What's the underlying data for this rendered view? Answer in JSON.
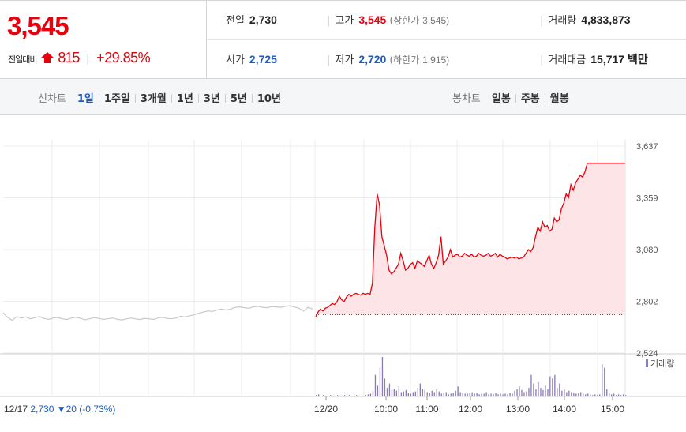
{
  "quote": {
    "price": "3,545",
    "change_label": "전일대비",
    "change_amount": "815",
    "change_pct": "+29.85%",
    "prev_close_label": "전일",
    "prev_close": "2,730",
    "open_label": "시가",
    "open": "2,725",
    "high_label": "고가",
    "high": "3,545",
    "upper_limit_label": "(상한가",
    "upper_limit": "3,545)",
    "low_label": "저가",
    "low": "2,720",
    "lower_limit_label": "(하한가",
    "lower_limit": "1,915)",
    "volume_label": "거래량",
    "volume": "4,833,873",
    "value_label": "거래대금",
    "value": "15,717 백만"
  },
  "tabs": {
    "line_label": "선차트",
    "line": [
      "1일",
      "1주일",
      "3개월",
      "1년",
      "3년",
      "5년",
      "10년"
    ],
    "line_active": "1일",
    "candle_label": "봉차트",
    "candle": [
      "일봉",
      "주봉",
      "월봉"
    ]
  },
  "colors": {
    "up": "#e8000c",
    "down": "#1a5bc8",
    "prev_line": "#c8c8c8",
    "volume": "#8a7ab5",
    "fill": "#fde4e6"
  },
  "chart_data": {
    "type": "line",
    "y_ticks": [
      "3,637",
      "3,359",
      "3,080",
      "2,802",
      "2,524"
    ],
    "y_tick_values": [
      3637,
      3359,
      3080,
      2802,
      2524
    ],
    "ylim": [
      2524,
      3637
    ],
    "x_ticks": [
      "12/20",
      "10:00",
      "11:00",
      "12:00",
      "13:00",
      "14:00",
      "15:00"
    ],
    "prev_day_caption": "12/17",
    "prev_day_close": "2,730",
    "prev_day_change": "▼20",
    "prev_day_change_pct": "(-0.73%)",
    "volume_legend": "거래량",
    "baseline": 2730,
    "series": [
      {
        "values": [
          2740,
          2715,
          2700,
          2720,
          2712,
          2718,
          2708,
          2715,
          2720,
          2710,
          2705,
          2712,
          2715,
          2708,
          2704,
          2712,
          2716,
          2710,
          2703,
          2708,
          2714,
          2710,
          2705,
          2708,
          2712,
          2706,
          2702,
          2707,
          2712,
          2708,
          2704,
          2710,
          2708,
          2705,
          2712,
          2716,
          2710,
          2708,
          2712,
          2722,
          2718,
          2724,
          2730,
          2738,
          2745,
          2750,
          2748,
          2756,
          2760,
          2755,
          2760,
          2770,
          2772,
          2768,
          2765,
          2772,
          2775,
          2770,
          2768,
          2774,
          2772,
          2770,
          2775,
          2778,
          2772,
          2765,
          2750,
          2770,
          2760
        ]
      },
      {
        "values": [
          2720,
          2745,
          2760,
          2750,
          2765,
          2770,
          2780,
          2790,
          2785,
          2800,
          2830,
          2810,
          2800,
          2825,
          2840,
          2830,
          2840,
          2845,
          2840,
          2835,
          2845,
          2840,
          2845,
          2840,
          2900,
          3200,
          3380,
          3320,
          3150,
          3100,
          3050,
          2970,
          2950,
          2960,
          2980,
          3000,
          3060,
          3020,
          2970,
          2980,
          3000,
          3010,
          2980,
          3020,
          3010,
          3000,
          2990,
          3020,
          3050,
          3000,
          2980,
          3010,
          3050,
          3150,
          3000,
          3020,
          3040,
          3080,
          3040,
          3050,
          3055,
          3040,
          3045,
          3060,
          3050,
          3045,
          3055,
          3040,
          3045,
          3060,
          3050,
          3045,
          3050,
          3060,
          3045,
          3050,
          3060,
          3040,
          3055,
          3045,
          3040,
          3030,
          3035,
          3040,
          3035,
          3040,
          3030,
          3035,
          3040,
          3060,
          3080,
          3070,
          3090,
          3150,
          3200,
          3180,
          3230,
          3200,
          3210,
          3180,
          3190,
          3250,
          3230,
          3240,
          3300,
          3330,
          3380,
          3360,
          3430,
          3400,
          3440,
          3460,
          3480,
          3470,
          3500,
          3545,
          3545,
          3545,
          3545,
          3545,
          3545,
          3545,
          3545,
          3545,
          3545,
          3545,
          3545,
          3545,
          3545,
          3545,
          3545,
          3545
        ]
      }
    ],
    "volume": [
      2,
      3,
      1,
      2,
      1,
      1,
      2,
      1,
      1,
      2,
      1,
      1,
      2,
      1,
      2,
      1,
      1,
      2,
      1,
      1,
      1,
      2,
      3,
      4,
      8,
      30,
      15,
      40,
      55,
      25,
      12,
      18,
      9,
      10,
      8,
      14,
      6,
      7,
      9,
      5,
      4,
      6,
      7,
      12,
      18,
      10,
      9,
      6,
      5,
      8,
      6,
      10,
      7,
      4,
      5,
      6,
      3,
      4,
      5,
      8,
      14,
      6,
      5,
      4,
      4,
      5,
      6,
      4,
      5,
      3,
      4,
      4,
      6,
      3,
      4,
      3,
      5,
      3,
      4,
      3,
      4,
      3,
      5,
      4,
      8,
      10,
      14,
      9,
      6,
      7,
      12,
      30,
      18,
      10,
      20,
      12,
      9,
      15,
      10,
      28,
      25,
      30,
      12,
      18,
      8,
      10,
      6,
      8,
      6,
      5,
      4,
      5,
      6,
      4,
      3,
      4,
      3,
      2,
      3,
      2,
      3,
      45,
      40,
      10,
      5,
      3,
      4,
      2,
      3,
      2,
      3,
      2
    ]
  }
}
